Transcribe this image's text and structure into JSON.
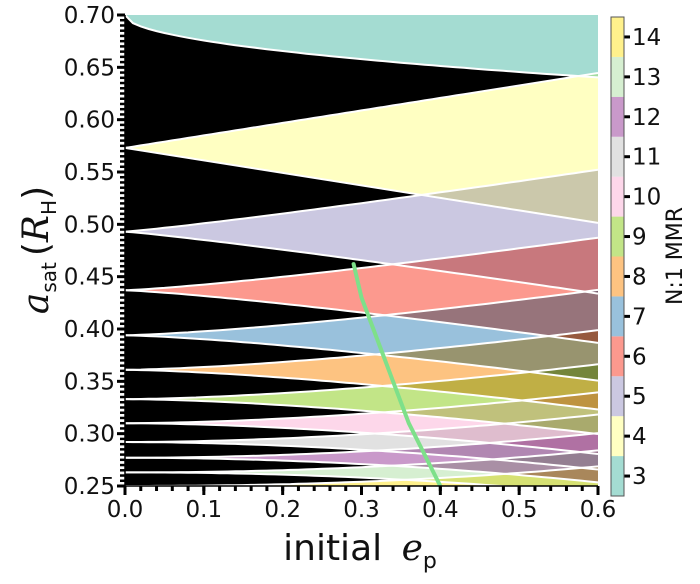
{
  "chart_data": {
    "type": "heatmap",
    "title": "",
    "xlabel": "initial",
    "xlabel_math": "e",
    "xlabel_sub": "p",
    "ylabel_math": "a",
    "ylabel_sub": "sat",
    "ylabel_unit": "R",
    "ylabel_unit_sub": "H",
    "xlim": [
      0.0,
      0.6
    ],
    "ylim": [
      0.25,
      0.7
    ],
    "xticks": [
      "0.0",
      "0.1",
      "0.2",
      "0.3",
      "0.4",
      "0.5",
      "0.6"
    ],
    "yticks": [
      "0.25",
      "0.30",
      "0.35",
      "0.40",
      "0.45",
      "0.50",
      "0.55",
      "0.60",
      "0.65",
      "0.70"
    ],
    "background_color": "#000000",
    "colorbar": {
      "label": "N:1 MMR",
      "ticks": [
        "3",
        "4",
        "5",
        "6",
        "7",
        "8",
        "9",
        "10",
        "11",
        "12",
        "13",
        "14"
      ],
      "colors": [
        "#8dd3c7",
        "#ffffb3",
        "#bebada",
        "#fb8072",
        "#80b1d3",
        "#fdb462",
        "#b3de69",
        "#fccde5",
        "#d9d9d9",
        "#bc80bd",
        "#ccebc5",
        "#ffed6f"
      ]
    },
    "resonances": [
      {
        "N": 3,
        "a_at_e0": 0.7
      },
      {
        "N": 4,
        "a_at_e0": 0.573
      },
      {
        "N": 5,
        "a_at_e0": 0.493
      },
      {
        "N": 6,
        "a_at_e0": 0.437
      },
      {
        "N": 7,
        "a_at_e0": 0.394
      },
      {
        "N": 8,
        "a_at_e0": 0.361
      },
      {
        "N": 9,
        "a_at_e0": 0.333
      },
      {
        "N": 10,
        "a_at_e0": 0.31
      },
      {
        "N": 11,
        "a_at_e0": 0.292
      },
      {
        "N": 12,
        "a_at_e0": 0.277
      },
      {
        "N": 13,
        "a_at_e0": 0.263
      },
      {
        "N": 14,
        "a_at_e0": 0.25
      }
    ],
    "green_curve": {
      "color": "#7ee08a",
      "x": [
        0.29,
        0.3,
        0.32,
        0.34,
        0.36,
        0.38,
        0.4
      ],
      "y": [
        0.462,
        0.43,
        0.39,
        0.35,
        0.31,
        0.28,
        0.25
      ]
    }
  }
}
